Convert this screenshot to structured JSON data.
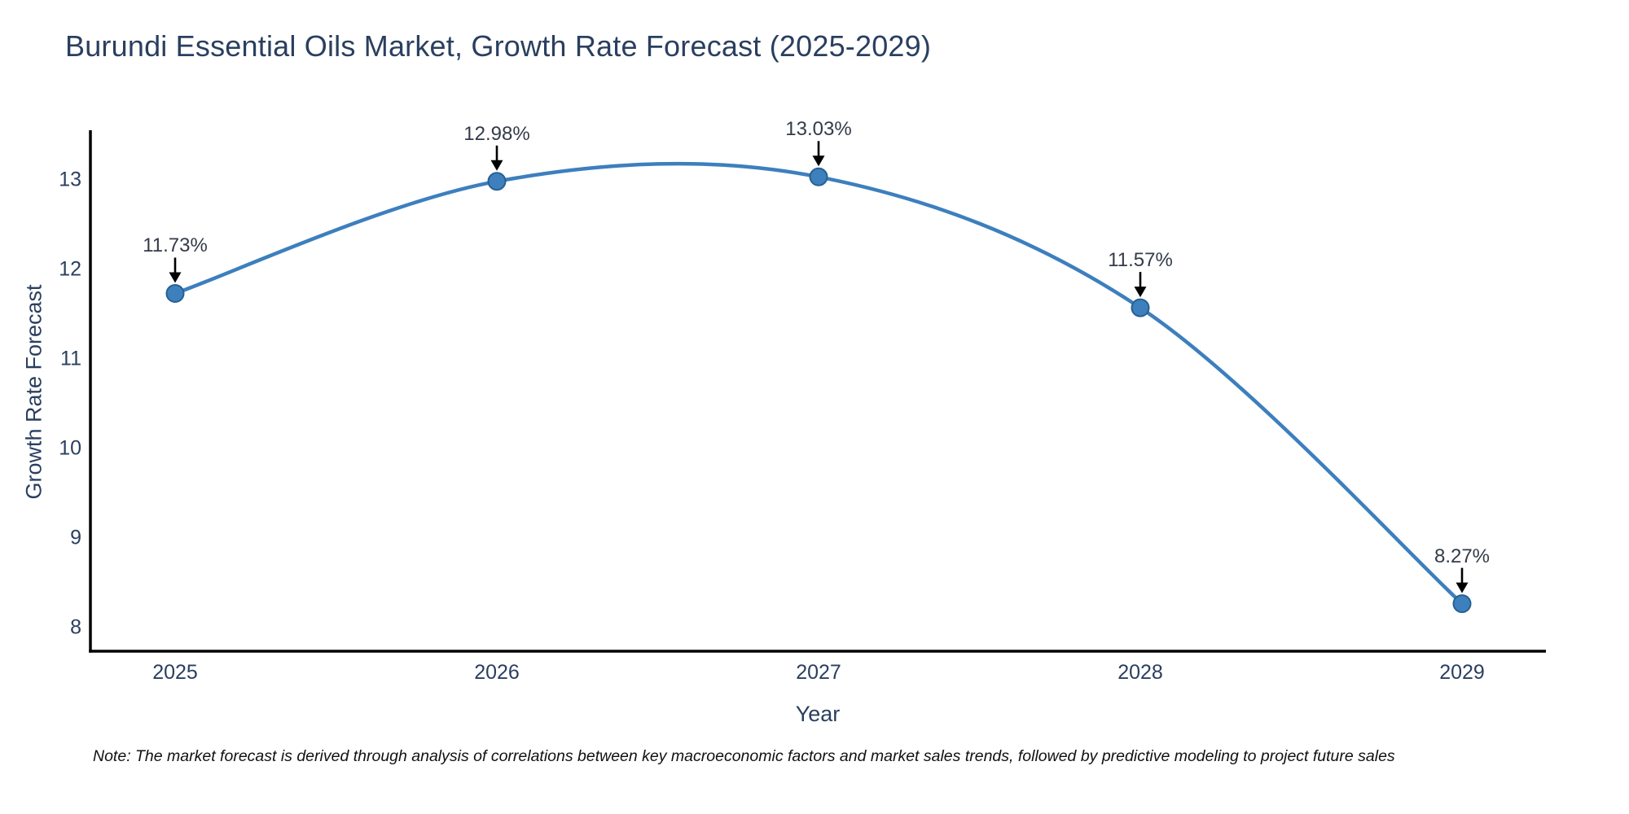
{
  "title": "Burundi Essential Oils Market, Growth Rate Forecast (2025-2029)",
  "note": "Note: The market forecast is derived through analysis of correlations between key macroeconomic factors and market sales trends, followed by predictive modeling to project future sales",
  "chart_data": {
    "type": "line",
    "title": "Burundi Essential Oils Market, Growth Rate Forecast (2025-2029)",
    "x": [
      "2025",
      "2026",
      "2027",
      "2028",
      "2029"
    ],
    "values": [
      11.73,
      12.98,
      13.03,
      11.57,
      8.27
    ],
    "point_labels": [
      "11.73%",
      "12.98%",
      "13.03%",
      "11.57%",
      "8.27%"
    ],
    "xlabel": "Year",
    "ylabel": "Growth Rate Forecast",
    "y_ticks": [
      8,
      9,
      10,
      11,
      12,
      13
    ],
    "ylim": [
      7.74,
      13.55
    ],
    "line_shape": "spline",
    "grid": false,
    "legend": "none",
    "annotation_arrows": "black, pointing down to each marker",
    "colors": {
      "line": "#3d7fbe",
      "marker_fill": "#3e80be",
      "marker_edge": "#27618f",
      "arrow": "#000000",
      "title_text": "#2a3f5f",
      "axis_text": "#2a3f5f",
      "annotation_text": "#333b49",
      "axis_line": "#000000",
      "note_text": "#111111",
      "background": "#ffffff"
    }
  }
}
